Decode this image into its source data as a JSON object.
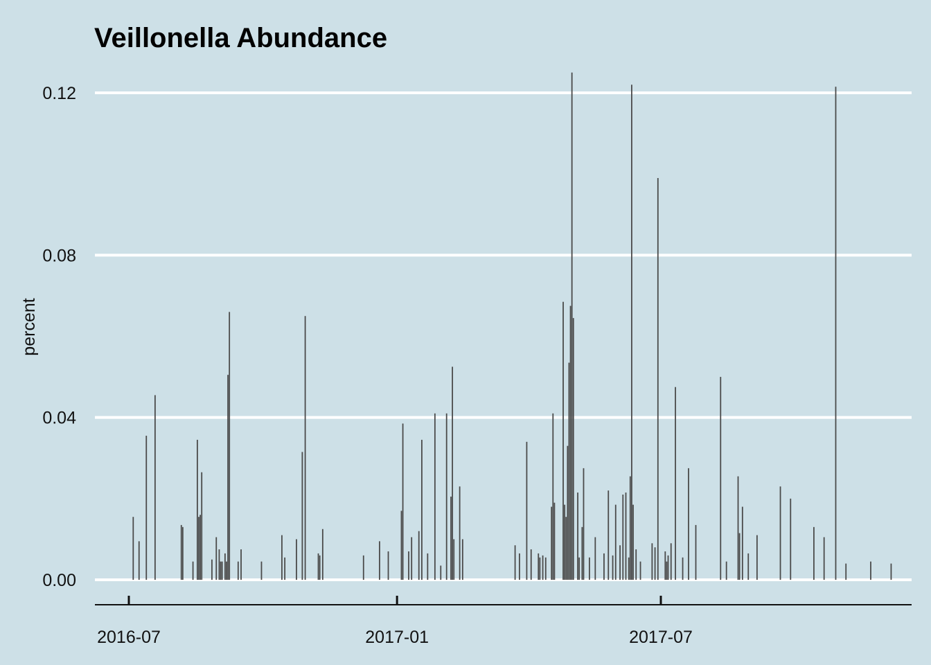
{
  "chart_data": {
    "type": "bar",
    "title": "Veillonella Abundance",
    "ylabel": "percent",
    "xlabel": "",
    "ylim": [
      -0.006,
      0.125
    ],
    "xlim": [
      "2016-06-23",
      "2017-12-08"
    ],
    "yticks": [
      0.0,
      0.04,
      0.08,
      0.12
    ],
    "ytick_labels": [
      "0.00",
      "0.04",
      "0.08",
      "0.12"
    ],
    "xticks": [
      "2016-07-01",
      "2017-01-01",
      "2017-07-01"
    ],
    "xtick_labels": [
      "2016-07",
      "2017-01",
      "2017-07"
    ],
    "grid": "horizontal",
    "bar_color": "#4a4a4a",
    "background": "#cde0e7",
    "points": [
      [
        "2016-07-04",
        0.0155
      ],
      [
        "2016-07-08",
        0.0095
      ],
      [
        "2016-07-13",
        0.0355
      ],
      [
        "2016-07-19",
        0.0455
      ],
      [
        "2016-08-06",
        0.0135
      ],
      [
        "2016-08-07",
        0.013
      ],
      [
        "2016-08-14",
        0.0045
      ],
      [
        "2016-08-17",
        0.0345
      ],
      [
        "2016-08-18",
        0.0155
      ],
      [
        "2016-08-19",
        0.016
      ],
      [
        "2016-08-20",
        0.0265
      ],
      [
        "2016-08-27",
        0.005
      ],
      [
        "2016-08-30",
        0.0105
      ],
      [
        "2016-09-01",
        0.0075
      ],
      [
        "2016-09-02",
        0.0045
      ],
      [
        "2016-09-03",
        0.0045
      ],
      [
        "2016-09-05",
        0.0065
      ],
      [
        "2016-09-06",
        0.0045
      ],
      [
        "2016-09-07",
        0.0505
      ],
      [
        "2016-09-08",
        0.066
      ],
      [
        "2016-09-14",
        0.0045
      ],
      [
        "2016-09-16",
        0.0075
      ],
      [
        "2016-09-30",
        0.0045
      ],
      [
        "2016-10-14",
        0.011
      ],
      [
        "2016-10-16",
        0.0055
      ],
      [
        "2016-10-24",
        0.01
      ],
      [
        "2016-10-28",
        0.0315
      ],
      [
        "2016-10-30",
        0.065
      ],
      [
        "2016-11-08",
        0.0065
      ],
      [
        "2016-11-09",
        0.006
      ],
      [
        "2016-11-11",
        0.0125
      ],
      [
        "2016-12-09",
        0.006
      ],
      [
        "2016-12-20",
        0.0095
      ],
      [
        "2016-12-26",
        0.007
      ],
      [
        "2017-01-04",
        0.017
      ],
      [
        "2017-01-05",
        0.0385
      ],
      [
        "2017-01-09",
        0.007
      ],
      [
        "2017-01-11",
        0.0105
      ],
      [
        "2017-01-16",
        0.012
      ],
      [
        "2017-01-18",
        0.0345
      ],
      [
        "2017-01-22",
        0.0065
      ],
      [
        "2017-01-27",
        0.041
      ],
      [
        "2017-01-31",
        0.0035
      ],
      [
        "2017-02-04",
        0.041
      ],
      [
        "2017-02-07",
        0.0205
      ],
      [
        "2017-02-08",
        0.0525
      ],
      [
        "2017-02-09",
        0.01
      ],
      [
        "2017-02-13",
        0.023
      ],
      [
        "2017-02-15",
        0.01
      ],
      [
        "2017-03-23",
        0.0085
      ],
      [
        "2017-03-26",
        0.0065
      ],
      [
        "2017-03-31",
        0.034
      ],
      [
        "2017-04-03",
        0.0075
      ],
      [
        "2017-04-08",
        0.0065
      ],
      [
        "2017-04-09",
        0.0055
      ],
      [
        "2017-04-11",
        0.006
      ],
      [
        "2017-04-13",
        0.0055
      ],
      [
        "2017-04-17",
        0.018
      ],
      [
        "2017-04-18",
        0.041
      ],
      [
        "2017-04-19",
        0.019
      ],
      [
        "2017-04-25",
        0.0685
      ],
      [
        "2017-04-26",
        0.0185
      ],
      [
        "2017-04-27",
        0.0155
      ],
      [
        "2017-04-28",
        0.033
      ],
      [
        "2017-04-29",
        0.0535
      ],
      [
        "2017-04-30",
        0.0675
      ],
      [
        "2017-05-01",
        0.125
      ],
      [
        "2017-05-02",
        0.0645
      ],
      [
        "2017-05-05",
        0.0215
      ],
      [
        "2017-05-06",
        0.0055
      ],
      [
        "2017-05-08",
        0.013
      ],
      [
        "2017-05-09",
        0.0275
      ],
      [
        "2017-05-13",
        0.0055
      ],
      [
        "2017-05-17",
        0.0105
      ],
      [
        "2017-05-23",
        0.0065
      ],
      [
        "2017-05-26",
        0.022
      ],
      [
        "2017-05-29",
        0.006
      ],
      [
        "2017-05-31",
        0.0185
      ],
      [
        "2017-06-03",
        0.0085
      ],
      [
        "2017-06-05",
        0.021
      ],
      [
        "2017-06-07",
        0.0215
      ],
      [
        "2017-06-09",
        0.0055
      ],
      [
        "2017-06-10",
        0.0255
      ],
      [
        "2017-06-11",
        0.122
      ],
      [
        "2017-06-12",
        0.0185
      ],
      [
        "2017-06-14",
        0.0075
      ],
      [
        "2017-06-17",
        0.0045
      ],
      [
        "2017-06-25",
        0.009
      ],
      [
        "2017-06-27",
        0.008
      ],
      [
        "2017-06-29",
        0.099
      ],
      [
        "2017-07-04",
        0.007
      ],
      [
        "2017-07-05",
        0.0045
      ],
      [
        "2017-07-06",
        0.006
      ],
      [
        "2017-07-08",
        0.009
      ],
      [
        "2017-07-11",
        0.0475
      ],
      [
        "2017-07-16",
        0.0055
      ],
      [
        "2017-07-20",
        0.0275
      ],
      [
        "2017-07-25",
        0.0135
      ],
      [
        "2017-08-11",
        0.05
      ],
      [
        "2017-08-15",
        0.0045
      ],
      [
        "2017-08-23",
        0.0255
      ],
      [
        "2017-08-24",
        0.0115
      ],
      [
        "2017-08-26",
        0.018
      ],
      [
        "2017-08-30",
        0.0065
      ],
      [
        "2017-09-05",
        0.011
      ],
      [
        "2017-09-21",
        0.023
      ],
      [
        "2017-09-28",
        0.02
      ],
      [
        "2017-10-14",
        0.013
      ],
      [
        "2017-10-21",
        0.0105
      ],
      [
        "2017-10-29",
        0.1215
      ],
      [
        "2017-11-05",
        0.004
      ],
      [
        "2017-11-22",
        0.0045
      ],
      [
        "2017-12-06",
        0.004
      ]
    ]
  }
}
